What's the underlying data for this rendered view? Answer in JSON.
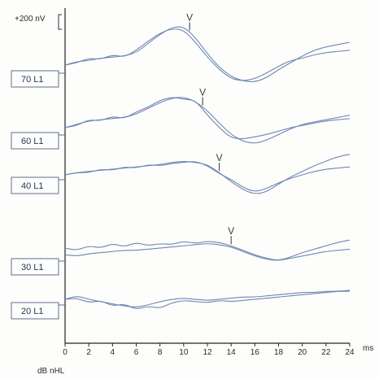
{
  "chart_data": {
    "type": "line",
    "title": "",
    "scale_bar_label": "+200 nV",
    "xlabel": "ms",
    "ylabel_caption": "dB nHL",
    "x_ticks": [
      0,
      2,
      4,
      6,
      8,
      10,
      12,
      14,
      16,
      18,
      20,
      22,
      24
    ],
    "x_tick_labels": [
      "0",
      "2",
      "4",
      "6",
      "8",
      "10",
      "12",
      "14",
      "16",
      "18",
      "20",
      "22",
      "24"
    ],
    "xlim": [
      0,
      24
    ],
    "grid": false,
    "line_color": "#6f86b4",
    "traces": [
      {
        "label": "70 L1",
        "level_db": 70,
        "peak": {
          "marker": "V",
          "latency_ms": 10.5
        },
        "series": [
          {
            "x": [
              0,
              1,
              2,
              3,
              4,
              5,
              6,
              7,
              8,
              9,
              10,
              11,
              12,
              13,
              14,
              15,
              16,
              17,
              18,
              19,
              20,
              21,
              22,
              23,
              24
            ],
            "y": [
              0,
              0.15,
              0.2,
              0.3,
              0.35,
              0.4,
              0.55,
              0.95,
              1.35,
              1.65,
              1.7,
              1.2,
              0.5,
              -0.1,
              -0.5,
              -0.7,
              -0.75,
              -0.55,
              -0.2,
              0.1,
              0.4,
              0.65,
              0.8,
              0.9,
              1.0
            ]
          },
          {
            "x": [
              0,
              1,
              2,
              3,
              4,
              5,
              6,
              7,
              8,
              9,
              10,
              11,
              12,
              13,
              14,
              15,
              16,
              17,
              18,
              19,
              20,
              21,
              22,
              23,
              24
            ],
            "y": [
              0,
              0.1,
              0.3,
              0.25,
              0.45,
              0.35,
              0.65,
              1.05,
              1.4,
              1.6,
              1.55,
              1.0,
              0.35,
              -0.2,
              -0.6,
              -0.7,
              -0.6,
              -0.35,
              -0.05,
              0.2,
              0.3,
              0.45,
              0.55,
              0.6,
              0.65
            ]
          }
        ]
      },
      {
        "label": "60 L1",
        "level_db": 60,
        "peak": {
          "marker": "V",
          "latency_ms": 11.6
        },
        "series": [
          {
            "x": [
              0,
              1,
              2,
              3,
              4,
              5,
              6,
              7,
              8,
              9,
              10,
              11,
              12,
              13,
              14,
              15,
              16,
              17,
              18,
              19,
              20,
              21,
              22,
              23,
              24
            ],
            "y": [
              0,
              0.15,
              0.3,
              0.35,
              0.4,
              0.45,
              0.6,
              0.85,
              1.1,
              1.3,
              1.35,
              1.15,
              0.75,
              0.2,
              -0.3,
              -0.6,
              -0.7,
              -0.55,
              -0.3,
              -0.05,
              0.15,
              0.25,
              0.35,
              0.45,
              0.55
            ]
          },
          {
            "x": [
              0,
              1,
              2,
              3,
              4,
              5,
              6,
              7,
              8,
              9,
              10,
              11,
              12,
              13,
              14,
              15,
              16,
              17,
              18,
              19,
              20,
              21,
              22,
              23,
              24
            ],
            "y": [
              0,
              0.1,
              0.35,
              0.3,
              0.5,
              0.4,
              0.7,
              0.9,
              1.2,
              1.35,
              1.25,
              1.2,
              0.55,
              0.0,
              -0.45,
              -0.5,
              -0.4,
              -0.3,
              -0.15,
              0.0,
              0.1,
              0.2,
              0.3,
              0.35,
              0.4
            ]
          }
        ]
      },
      {
        "label": "40 L1",
        "level_db": 40,
        "peak": {
          "marker": "V",
          "latency_ms": 13.0
        },
        "series": [
          {
            "x": [
              0,
              1,
              2,
              3,
              4,
              5,
              6,
              7,
              8,
              9,
              10,
              11,
              12,
              13,
              14,
              15,
              16,
              17,
              18,
              19,
              20,
              21,
              22,
              23,
              24
            ],
            "y": [
              0,
              0.1,
              0.15,
              0.2,
              0.25,
              0.3,
              0.35,
              0.4,
              0.45,
              0.55,
              0.6,
              0.55,
              0.45,
              0.1,
              -0.3,
              -0.65,
              -0.85,
              -0.75,
              -0.4,
              -0.1,
              0.15,
              0.4,
              0.6,
              0.8,
              0.9
            ]
          },
          {
            "x": [
              0,
              1,
              2,
              3,
              4,
              5,
              6,
              7,
              8,
              9,
              10,
              11,
              12,
              13,
              14,
              15,
              16,
              17,
              18,
              19,
              20,
              21,
              22,
              23,
              24
            ],
            "y": [
              0,
              0.1,
              0.1,
              0.25,
              0.2,
              0.35,
              0.3,
              0.45,
              0.4,
              0.5,
              0.55,
              0.6,
              0.4,
              0.05,
              -0.2,
              -0.55,
              -0.75,
              -0.6,
              -0.35,
              -0.15,
              0.0,
              0.15,
              0.25,
              0.3,
              0.35
            ]
          }
        ]
      },
      {
        "label": "30 L1",
        "level_db": 30,
        "peak": {
          "marker": "V",
          "latency_ms": 14.0
        },
        "series": [
          {
            "x": [
              0,
              1,
              2,
              3,
              4,
              5,
              6,
              7,
              8,
              9,
              10,
              11,
              12,
              13,
              14,
              15,
              16,
              17,
              18,
              19,
              20,
              21,
              22,
              23,
              24
            ],
            "y": [
              0,
              -0.1,
              0.1,
              0.0,
              0.2,
              0.05,
              0.25,
              0.1,
              0.2,
              0.15,
              0.3,
              0.2,
              0.3,
              0.25,
              0.1,
              -0.1,
              -0.3,
              -0.45,
              -0.55,
              -0.4,
              -0.2,
              -0.05,
              0.1,
              0.25,
              0.35
            ]
          },
          {
            "x": [
              0,
              1,
              2,
              3,
              4,
              5,
              6,
              7,
              8,
              9,
              10,
              11,
              12,
              13,
              14,
              15,
              16,
              17,
              18,
              19,
              20,
              21,
              22,
              23,
              24
            ],
            "y": [
              -0.3,
              -0.35,
              -0.25,
              -0.2,
              -0.15,
              -0.1,
              -0.1,
              -0.05,
              0.0,
              0.05,
              0.1,
              0.15,
              0.2,
              0.15,
              0.05,
              -0.15,
              -0.35,
              -0.5,
              -0.55,
              -0.45,
              -0.35,
              -0.25,
              -0.15,
              -0.1,
              -0.05
            ]
          }
        ]
      },
      {
        "label": "20 L1",
        "level_db": 20,
        "peak": null,
        "series": [
          {
            "x": [
              0,
              1,
              2,
              3,
              4,
              5,
              6,
              7,
              8,
              9,
              10,
              11,
              12,
              13,
              14,
              15,
              16,
              17,
              18,
              19,
              20,
              21,
              22,
              23,
              24
            ],
            "y": [
              0,
              0.15,
              0.0,
              -0.1,
              -0.2,
              -0.3,
              -0.35,
              -0.25,
              -0.1,
              0.0,
              0.05,
              0.0,
              -0.05,
              0.0,
              0.05,
              0.1,
              0.1,
              0.15,
              0.2,
              0.25,
              0.3,
              0.3,
              0.35,
              0.35,
              0.4
            ]
          },
          {
            "x": [
              0,
              1,
              2,
              3,
              4,
              5,
              6,
              7,
              8,
              9,
              10,
              11,
              12,
              13,
              14,
              15,
              16,
              17,
              18,
              19,
              20,
              21,
              22,
              23,
              24
            ],
            "y": [
              0,
              0.05,
              -0.15,
              -0.05,
              -0.3,
              -0.2,
              -0.45,
              -0.3,
              -0.4,
              -0.15,
              -0.05,
              -0.1,
              -0.15,
              -0.05,
              -0.1,
              -0.05,
              0.0,
              0.05,
              0.1,
              0.15,
              0.2,
              0.25,
              0.3,
              0.35,
              0.35
            ]
          }
        ]
      }
    ]
  }
}
